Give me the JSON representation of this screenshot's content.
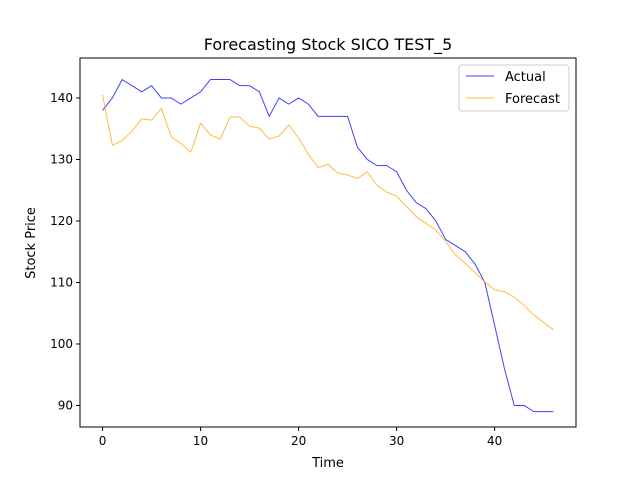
{
  "chart_data": {
    "type": "line",
    "title": "Forecasting Stock SICO TEST_5",
    "xlabel": "Time",
    "ylabel": "Stock Price",
    "xlim": [
      -2.3,
      48.3
    ],
    "ylim": [
      86.5,
      146.5
    ],
    "x_ticks": [
      0,
      10,
      20,
      30,
      40
    ],
    "y_ticks": [
      90,
      100,
      110,
      120,
      130,
      140
    ],
    "grid": false,
    "legend_position": "top-right",
    "x": [
      0,
      1,
      2,
      3,
      4,
      5,
      6,
      7,
      8,
      9,
      10,
      11,
      12,
      13,
      14,
      15,
      16,
      17,
      18,
      19,
      20,
      21,
      22,
      23,
      24,
      25,
      26,
      27,
      28,
      29,
      30,
      31,
      32,
      33,
      34,
      35,
      36,
      37,
      38,
      39,
      40,
      41,
      42,
      43,
      44,
      45,
      46
    ],
    "series": [
      {
        "name": "Actual",
        "color": "#0000ff",
        "values": [
          138,
          140,
          143,
          142,
          141,
          142,
          140,
          140,
          139,
          140,
          141,
          143,
          143,
          143,
          142,
          142,
          141,
          137,
          140,
          139,
          140,
          139,
          137,
          137,
          137,
          137,
          132,
          130,
          129,
          129,
          128,
          125,
          123,
          122,
          120,
          117,
          116,
          115,
          113,
          110,
          103,
          96,
          90,
          90,
          89,
          89,
          89
        ]
      },
      {
        "name": "Forecast",
        "color": "#ffa500",
        "values": [
          140.5,
          132.3,
          133.1,
          134.6,
          136.6,
          136.4,
          138.3,
          133.7,
          132.6,
          131.2,
          135.9,
          134.0,
          133.3,
          136.9,
          136.9,
          135.4,
          135.1,
          133.3,
          133.8,
          135.6,
          133.5,
          130.8,
          128.7,
          129.2,
          127.8,
          127.5,
          126.9,
          128.0,
          125.8,
          124.7,
          124.0,
          122.4,
          120.7,
          119.6,
          118.5,
          116.7,
          114.5,
          113.1,
          111.6,
          110.1,
          108.8,
          108.5,
          107.6,
          106.3,
          104.7,
          103.5,
          102.3
        ]
      }
    ]
  }
}
